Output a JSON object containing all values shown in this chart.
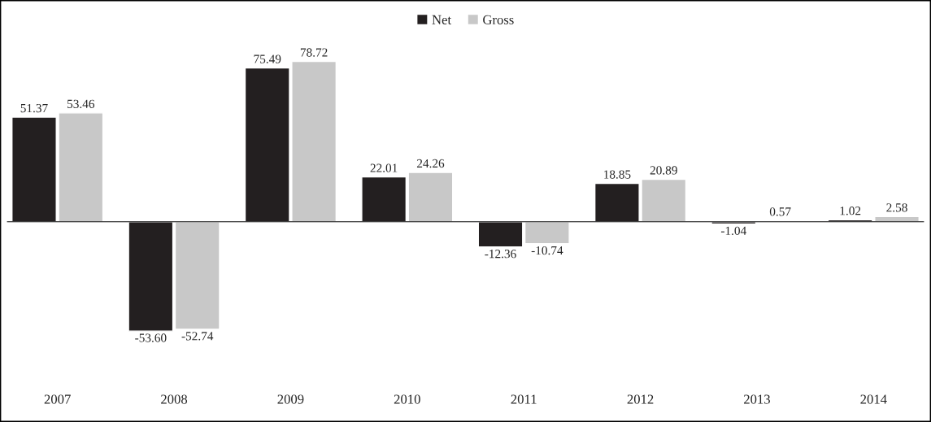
{
  "chart_data": {
    "type": "bar",
    "categories": [
      "2007",
      "2008",
      "2009",
      "2010",
      "2011",
      "2012",
      "2013",
      "2014"
    ],
    "series": [
      {
        "name": "Net",
        "color": "#231f20",
        "values": [
          51.37,
          -53.6,
          75.49,
          22.01,
          -12.36,
          18.85,
          -1.04,
          1.02
        ],
        "value_labels": [
          "51.37",
          "-53.60",
          "75.49",
          "22.01",
          "-12.36",
          "18.85",
          "-1.04",
          "1.02"
        ]
      },
      {
        "name": "Gross",
        "color": "#c8c8c8",
        "values": [
          53.46,
          -52.74,
          78.72,
          24.26,
          -10.74,
          20.89,
          0.57,
          2.58
        ],
        "value_labels": [
          "53.46",
          "-52.74",
          "78.72",
          "24.26",
          "-10.74",
          "20.89",
          "0.57",
          "2.58"
        ]
      }
    ],
    "legend": "top",
    "grid": false
  }
}
